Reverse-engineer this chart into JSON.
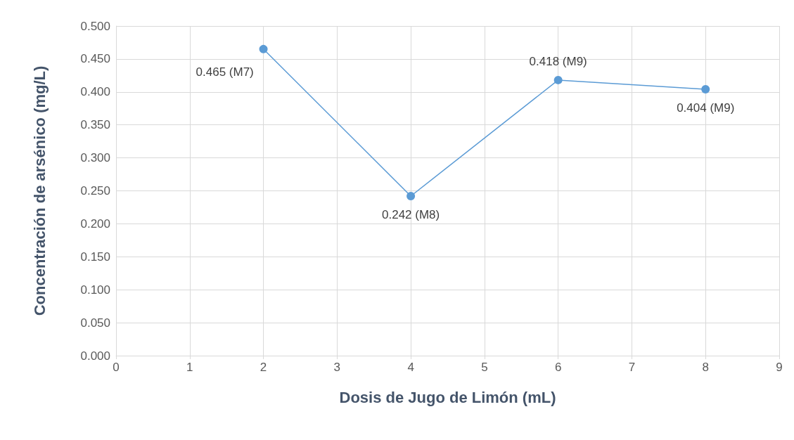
{
  "chart_data": {
    "type": "line",
    "xlabel": "Dosis de Jugo de Limón (mL)",
    "ylabel": "Concentración de arsénico (mg/L)",
    "x": [
      2,
      4,
      6,
      8
    ],
    "series": [
      {
        "color": "#5b9bd5",
        "values": [
          0.465,
          0.242,
          0.418,
          0.404
        ],
        "value_labels": [
          "0.465 (M7)",
          "0.242 (M8)",
          "0.418 (M9)",
          "0.404 (M9)"
        ]
      }
    ],
    "xlim": [
      0,
      9
    ],
    "xticks": [
      0,
      1,
      2,
      3,
      4,
      5,
      6,
      7,
      8,
      9
    ],
    "ylim": [
      0,
      0.5
    ],
    "yticks": [
      {
        "value": 0,
        "label": "0.000"
      },
      {
        "value": 0.05,
        "label": "0.050"
      },
      {
        "value": 0.1,
        "label": "0.100"
      },
      {
        "value": 0.15,
        "label": "0.150"
      },
      {
        "value": 0.2,
        "label": "0.200"
      },
      {
        "value": 0.25,
        "label": "0.250"
      },
      {
        "value": 0.3,
        "label": "0.300"
      },
      {
        "value": 0.35,
        "label": "0.350"
      },
      {
        "value": 0.4,
        "label": "0.400"
      },
      {
        "value": 0.45,
        "label": "0.450"
      },
      {
        "value": 0.5,
        "label": "0.500"
      }
    ],
    "grid": true,
    "marker": "circle",
    "line_style": "solid"
  }
}
